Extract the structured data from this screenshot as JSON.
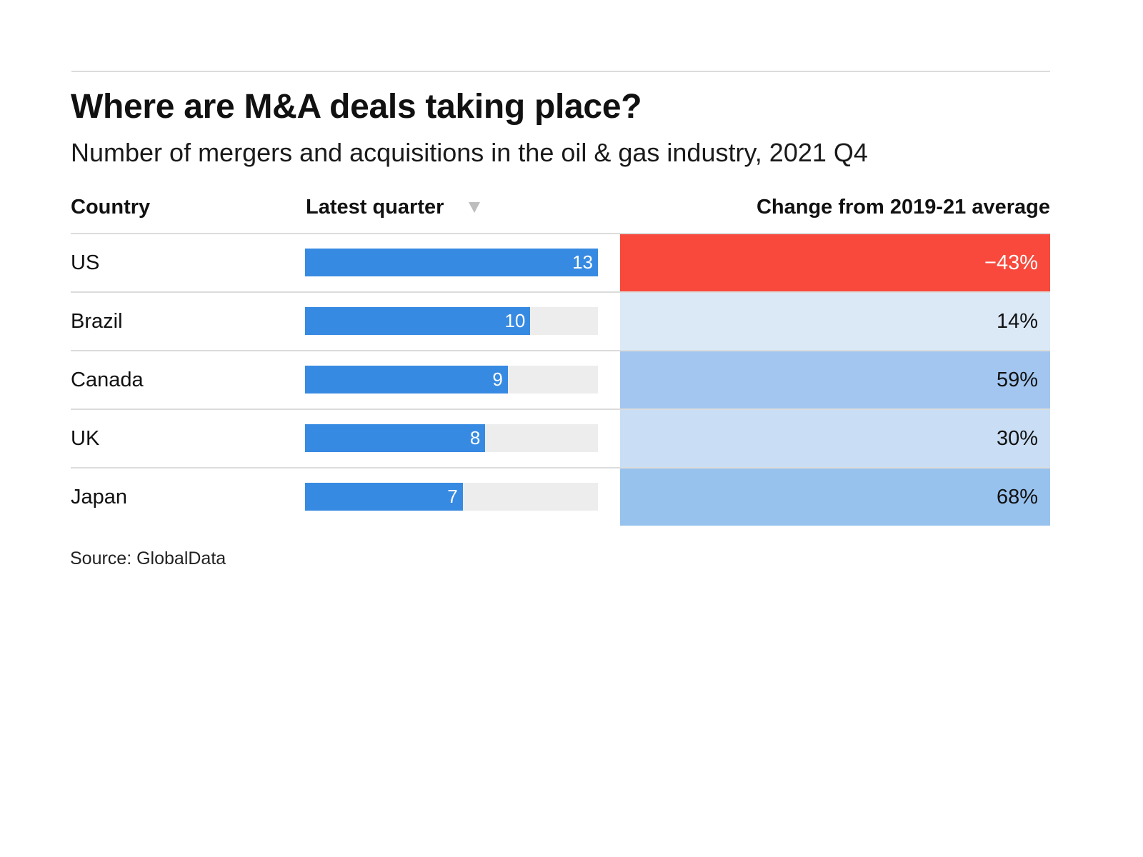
{
  "chart_data": {
    "type": "table",
    "title": "Where are M&A deals taking place?",
    "subtitle": "Number of mergers and acquisitions in the oil & gas industry, 2021 Q4",
    "columns": [
      "Country",
      "Latest quarter",
      "Change from 2019-21 average"
    ],
    "sort": {
      "column": "Latest quarter",
      "direction": "descending"
    },
    "bar_max": 13,
    "rows": [
      {
        "country": "US",
        "latest_quarter": 13,
        "change_pct": -43,
        "change_label": "−43%",
        "change_color": "#f8493c",
        "change_text_color": "#ffffff"
      },
      {
        "country": "Brazil",
        "latest_quarter": 10,
        "change_pct": 14,
        "change_label": "14%",
        "change_color": "#dbe9f7",
        "change_text_color": "#111111"
      },
      {
        "country": "Canada",
        "latest_quarter": 9,
        "change_pct": 59,
        "change_label": "59%",
        "change_color": "#a2c6f0",
        "change_text_color": "#111111"
      },
      {
        "country": "UK",
        "latest_quarter": 8,
        "change_pct": 30,
        "change_label": "30%",
        "change_color": "#c9def4",
        "change_text_color": "#111111"
      },
      {
        "country": "Japan",
        "latest_quarter": 7,
        "change_pct": 68,
        "change_label": "68%",
        "change_color": "#98c2ee",
        "change_text_color": "#111111"
      }
    ],
    "source": "Source: GlobalData"
  },
  "colors": {
    "bar": "#378ae2",
    "bar_track": "#ededed",
    "negative": "#f8493c"
  },
  "sort_icon": "triangle-down-icon"
}
